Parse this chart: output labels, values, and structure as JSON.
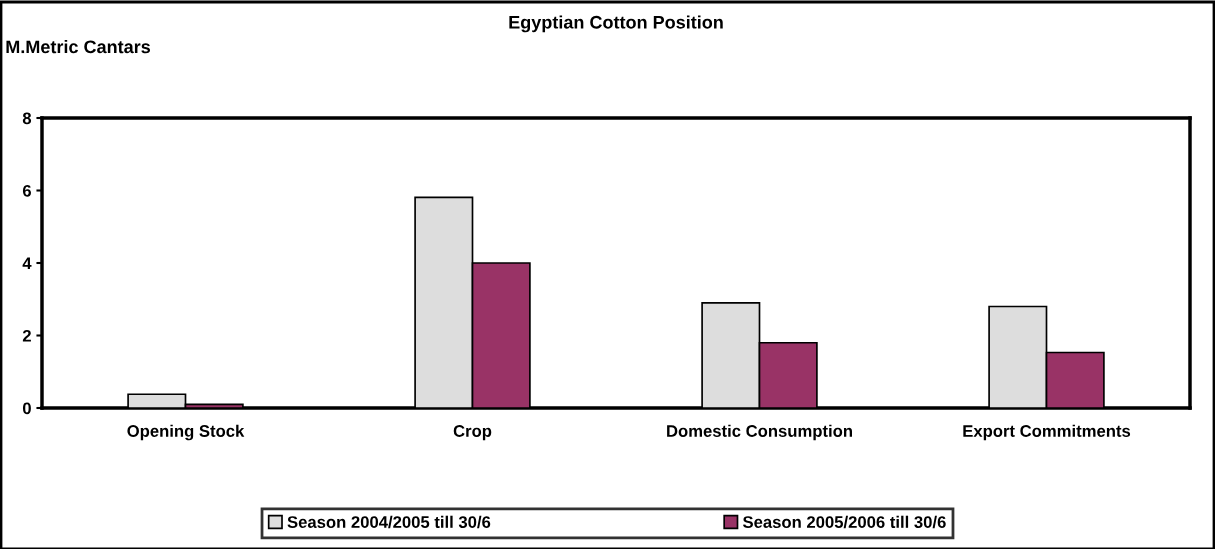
{
  "chart_data": {
    "type": "bar",
    "title": "Egyptian Cotton Position",
    "ylabel": "M.Metric Cantars",
    "categories": [
      "Opening Stock",
      "Crop",
      "Domestic Consumption",
      "Export Commitments"
    ],
    "series": [
      {
        "name": "Season 2004/2005 till 30/6",
        "color": "#dddddd",
        "values": [
          0.38,
          5.81,
          2.9,
          2.8
        ]
      },
      {
        "name": "Season 2005/2006 till 30/6",
        "color": "#993366",
        "values": [
          0.1,
          4.0,
          1.8,
          1.53
        ]
      }
    ],
    "ylim": [
      0,
      8
    ],
    "yticks": [
      0,
      2,
      4,
      6,
      8
    ],
    "grid": false,
    "legend": "bottom"
  }
}
